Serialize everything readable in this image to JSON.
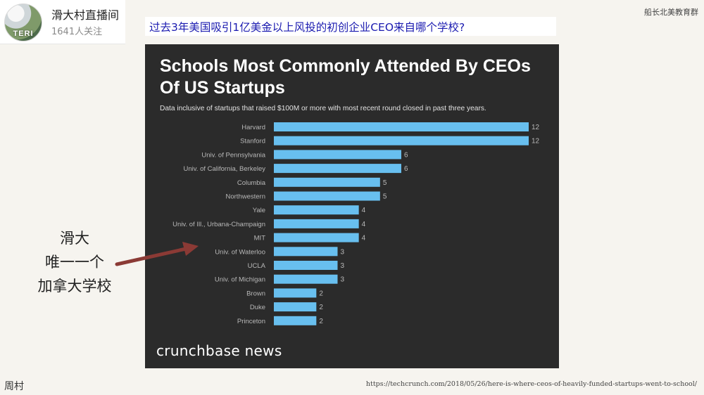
{
  "profile": {
    "avatar_text": "TERI",
    "channel_name": "滑大村直播间",
    "followers": "1641人关注"
  },
  "org_label": "船长北美教育群",
  "headline": "过去3年美国吸引1亿美金以上风投的初创企业CEO来自哪个学校?",
  "annotation": {
    "line1": "滑大",
    "line2": "唯一一个",
    "line3": "加拿大学校"
  },
  "footer": {
    "left": "周村",
    "url": "https://techcrunch.com/2018/05/26/here-is-where-ceos-of-heavily-funded-startups-went-to-school/"
  },
  "colors": {
    "bar": "#68bfef",
    "panel": "#2b2b2b",
    "headline": "#1b1bb0",
    "arrow": "#8b3a35"
  },
  "chart_data": {
    "type": "bar",
    "orientation": "horizontal",
    "title": "Schools Most Commonly Attended By CEOs Of US Startups",
    "subtitle": "Data inclusive of startups that raised $100M or more with most recent round closed in past three years.",
    "brand": "crunchbase news",
    "categories": [
      "Harvard",
      "Stanford",
      "Univ. of Pennsylvania",
      "Univ. of California, Berkeley",
      "Columbia",
      "Northwestern",
      "Yale",
      "Univ. of Ill., Urbana-Champaign",
      "MIT",
      "Univ. of Waterloo",
      "UCLA",
      "Univ. of Michigan",
      "Brown",
      "Duke",
      "Princeton"
    ],
    "values": [
      12,
      12,
      6,
      6,
      5,
      5,
      4,
      4,
      4,
      3,
      3,
      3,
      2,
      2,
      2
    ],
    "xlim": [
      0,
      12
    ],
    "grid": false,
    "legend": "none"
  }
}
